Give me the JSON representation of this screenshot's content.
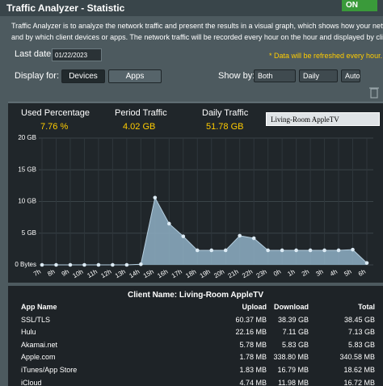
{
  "header": {
    "title": "Traffic Analyzer - Statistic",
    "toggle": "ON"
  },
  "description": [
    "Traffic Analyzer is to analyze the network traffic and present the results in a visual graph, which shows how your network is used",
    "and by which client devices or apps. The network traffic will be recorded every hour on the hour and displayed by clients or apps."
  ],
  "controls": {
    "last_date_label": "Last date:",
    "last_date": "01/22/2023",
    "note": "* Data will be refreshed every hour.",
    "display_for_label": "Display for:",
    "display_buttons": [
      "Devices",
      "Apps"
    ],
    "show_by_label": "Show by:",
    "show_by": [
      "Both",
      "Daily",
      "Auto"
    ]
  },
  "stats": [
    {
      "label": "Used Percentage",
      "value": "7.76 %"
    },
    {
      "label": "Period Traffic",
      "value": "4.02 GB"
    },
    {
      "label": "Daily Traffic",
      "value": "51.78 GB"
    }
  ],
  "client_select": "Living-Room AppleTV",
  "chart_data": {
    "type": "area",
    "categories": [
      "7h",
      "8h",
      "9h",
      "10h",
      "11h",
      "12h",
      "13h",
      "14h",
      "15h",
      "16h",
      "17h",
      "18h",
      "19h",
      "20h",
      "21h",
      "22h",
      "23h",
      "0h",
      "1h",
      "2h",
      "3h",
      "4h",
      "5h",
      "6h"
    ],
    "values": [
      0,
      0,
      0,
      0,
      0,
      0,
      0,
      0.1,
      10.6,
      6.5,
      4.5,
      2.3,
      2.3,
      2.3,
      4.6,
      4.2,
      2.3,
      2.3,
      2.3,
      2.3,
      2.3,
      2.3,
      2.4,
      0.3
    ],
    "color": "#8fb0c6",
    "ylim": [
      0,
      20
    ],
    "yticks": [
      {
        "value": 0,
        "label": "0 Bytes"
      },
      {
        "value": 5,
        "label": "5 GB"
      },
      {
        "value": 10,
        "label": "10 GB"
      },
      {
        "value": 15,
        "label": "15 GB"
      },
      {
        "value": 20,
        "label": "20 GB"
      }
    ],
    "grid": true
  },
  "table": {
    "title": "Client Name: Living-Room AppleTV",
    "columns": [
      "App Name",
      "Upload",
      "Download",
      "Total"
    ],
    "rows": [
      [
        "SSL/TLS",
        "60.37 MB",
        "38.39 GB",
        "38.45 GB"
      ],
      [
        "Hulu",
        "22.16 MB",
        "7.11 GB",
        "7.13 GB"
      ],
      [
        "Akamai.net",
        "5.78 MB",
        "5.83 GB",
        "5.83 GB"
      ],
      [
        "Apple.com",
        "1.78 MB",
        "338.80 MB",
        "340.58 MB"
      ],
      [
        "iTunes/App Store",
        "1.83 MB",
        "16.79 MB",
        "18.62 MB"
      ],
      [
        "iCloud",
        "4.74 MB",
        "11.98 MB",
        "16.72 MB"
      ]
    ]
  }
}
